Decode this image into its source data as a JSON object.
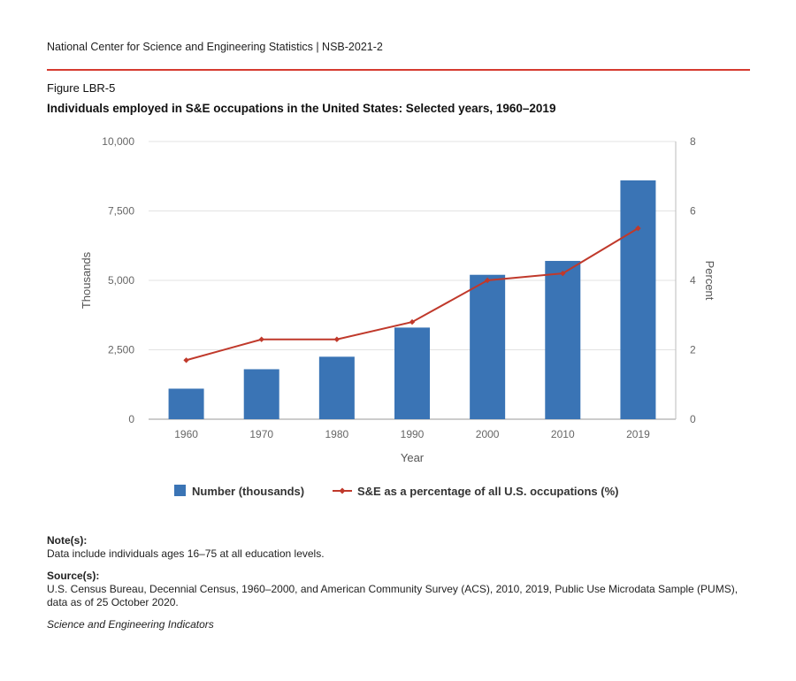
{
  "header": {
    "org_line": "National Center for Science and Engineering Statistics  |  NSB-2021-2"
  },
  "figure": {
    "label": "Figure LBR-5",
    "title": "Individuals employed in S&E occupations in the United States: Selected years, 1960–2019"
  },
  "chart_data": {
    "type": "bar",
    "title": "Individuals employed in S&E occupations in the United States: Selected years, 1960–2019",
    "categories": [
      "1960",
      "1970",
      "1980",
      "1990",
      "2000",
      "2010",
      "2019"
    ],
    "xlabel": "Year",
    "ylabel": "Thousands",
    "y2label": "Percent",
    "ylim": [
      0,
      10000
    ],
    "y2lim": [
      0,
      8
    ],
    "yticks": [
      0,
      2500,
      5000,
      7500,
      10000
    ],
    "ytick_labels": [
      "0",
      "2,500",
      "5,000",
      "7,500",
      "10,000"
    ],
    "y2ticks": [
      0,
      2,
      4,
      6,
      8
    ],
    "y2tick_labels": [
      "0",
      "2",
      "4",
      "6",
      "8"
    ],
    "grid": true,
    "legend_position": "bottom",
    "series": [
      {
        "name": "Number (thousands)",
        "type": "bar",
        "axis": "left",
        "color": "#3a74b5",
        "values": [
          1100,
          1800,
          2250,
          3300,
          5200,
          5700,
          8600
        ]
      },
      {
        "name": "S&E as a percentage of all U.S. occupations (%)",
        "type": "line",
        "axis": "right",
        "color": "#c0392b",
        "values": [
          1.7,
          2.3,
          2.3,
          2.8,
          4.0,
          4.2,
          5.5
        ]
      }
    ]
  },
  "notes": {
    "note_header": "Note(s):",
    "note_text": "Data include individuals ages 16–75 at all education levels.",
    "source_header": "Source(s):",
    "source_text": "U.S. Census Bureau, Decennial Census, 1960–2000, and American Community Survey (ACS), 2010, 2019, Public Use Microdata Sample (PUMS), data as of 25 October 2020."
  },
  "footer": {
    "publication": "Science and Engineering Indicators"
  }
}
